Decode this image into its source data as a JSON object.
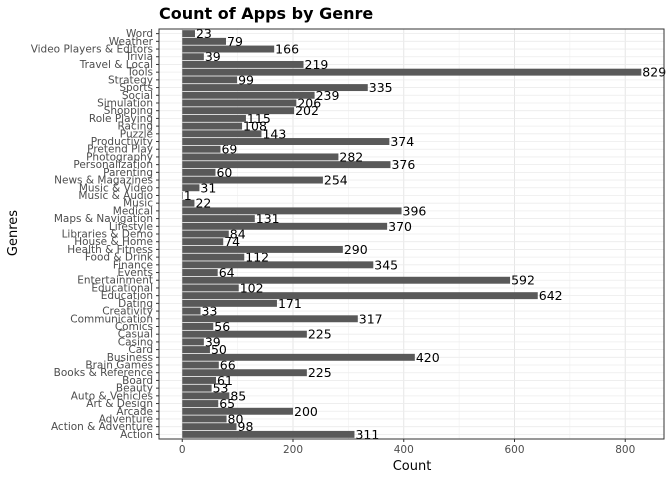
{
  "chart_data": {
    "type": "bar",
    "orientation": "horizontal",
    "title": "Count of Apps by Genre",
    "xlabel": "Count",
    "ylabel": "Genres",
    "xlim": [
      -42,
      870
    ],
    "xticks": [
      0,
      200,
      400,
      600,
      800
    ],
    "grid": true,
    "bar_color": "#595959",
    "categories": [
      "Action",
      "Action & Adventure",
      "Adventure",
      "Arcade",
      "Art & Design",
      "Auto & Vehicles",
      "Beauty",
      "Board",
      "Books & Reference",
      "Brain Games",
      "Business",
      "Card",
      "Casino",
      "Casual",
      "Comics",
      "Communication",
      "Creativity",
      "Dating",
      "Education",
      "Educational",
      "Entertainment",
      "Events",
      "Finance",
      "Food & Drink",
      "Health & Fitness",
      "House & Home",
      "Libraries & Demo",
      "Lifestyle",
      "Maps & Navigation",
      "Medical",
      "Music",
      "Music & Audio",
      "Music & Video",
      "News & Magazines",
      "Parenting",
      "Personalization",
      "Photography",
      "Pretend Play",
      "Productivity",
      "Puzzle",
      "Racing",
      "Role Playing",
      "Shopping",
      "Simulation",
      "Social",
      "Sports",
      "Strategy",
      "Tools",
      "Travel & Local",
      "Trivia",
      "Video Players & Editors",
      "Weather",
      "Word"
    ],
    "values": [
      311,
      98,
      80,
      200,
      65,
      85,
      53,
      61,
      225,
      66,
      420,
      50,
      39,
      225,
      56,
      317,
      33,
      171,
      642,
      102,
      592,
      64,
      345,
      112,
      290,
      74,
      84,
      370,
      131,
      396,
      22,
      1,
      31,
      254,
      60,
      376,
      282,
      69,
      374,
      143,
      108,
      115,
      202,
      206,
      239,
      335,
      99,
      829,
      219,
      39,
      166,
      79,
      23
    ]
  }
}
